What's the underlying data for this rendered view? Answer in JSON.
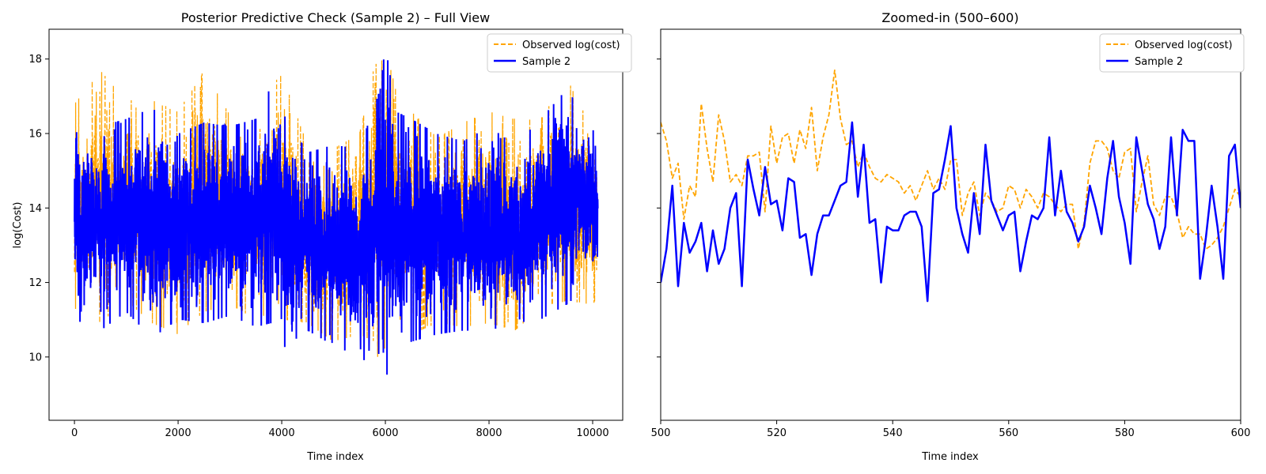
{
  "colors": {
    "observed": "#FFA500",
    "sample": "#0000FF",
    "axes": "#000000",
    "background": "#FFFFFF"
  },
  "chart_data": [
    {
      "type": "line",
      "title": "Posterior Predictive Check (Sample 2) – Full View",
      "xlabel": "Time index",
      "ylabel": "log(Cost)",
      "xlim": [
        -490,
        10580
      ],
      "ylim": [
        8.3,
        18.8
      ],
      "xticks": [
        0,
        2000,
        4000,
        6000,
        8000,
        10000
      ],
      "xtick_labels": [
        "0",
        "2000",
        "4000",
        "6000",
        "8000",
        "10000"
      ],
      "yticks": [
        10,
        12,
        14,
        16,
        18
      ],
      "ytick_labels": [
        "10",
        "12",
        "14",
        "16",
        "18"
      ],
      "grid": false,
      "legend": "top-right",
      "x_range": [
        0,
        10100
      ],
      "series": [
        {
          "name": "Observed log(cost)",
          "style": "dashed",
          "envelope_x": [
            0,
            500,
            1000,
            1500,
            2000,
            2500,
            3000,
            3500,
            3800,
            4000,
            4500,
            5000,
            5500,
            5800,
            5900,
            6000,
            6200,
            6500,
            7000,
            7500,
            8000,
            8500,
            9000,
            9500,
            10000,
            10100
          ],
          "upper": [
            16.8,
            17.7,
            16.9,
            16.9,
            16.6,
            17.7,
            16.5,
            16.2,
            17.3,
            17.6,
            15.7,
            15.6,
            16.0,
            17.9,
            17.8,
            18.3,
            17.2,
            16.6,
            15.9,
            16.3,
            16.6,
            16.4,
            16.4,
            17.5,
            16.1,
            15.6
          ],
          "lower": [
            11.3,
            10.9,
            11.5,
            10.9,
            10.6,
            11.2,
            11.4,
            11.0,
            11.2,
            11.0,
            10.9,
            10.4,
            10.6,
            10.4,
            9.6,
            10.3,
            10.5,
            10.6,
            10.9,
            10.8,
            10.9,
            10.7,
            11.3,
            11.5,
            11.4,
            11.6
          ]
        },
        {
          "name": "Sample 2",
          "style": "solid",
          "envelope_x": [
            0,
            500,
            1000,
            1500,
            2000,
            2500,
            3000,
            3500,
            3800,
            4000,
            4500,
            5000,
            5500,
            5800,
            5900,
            6000,
            6200,
            6500,
            7000,
            7500,
            8000,
            8500,
            9000,
            9500,
            10000,
            10100
          ],
          "upper": [
            16.8,
            16.2,
            16.4,
            16.7,
            16.0,
            16.3,
            16.2,
            16.4,
            17.3,
            16.6,
            15.5,
            15.7,
            15.6,
            16.8,
            17.2,
            18.4,
            16.6,
            16.4,
            16.0,
            15.8,
            16.2,
            15.7,
            16.4,
            17.2,
            16.2,
            15.2
          ],
          "lower": [
            11.0,
            10.7,
            11.2,
            10.5,
            11.0,
            10.9,
            11.1,
            10.8,
            10.9,
            10.2,
            10.7,
            10.3,
            10.0,
            9.6,
            8.9,
            9.4,
            10.1,
            10.4,
            10.6,
            10.7,
            10.7,
            10.9,
            11.0,
            11.4,
            12.0,
            12.3
          ]
        }
      ]
    },
    {
      "type": "line",
      "title": "Zoomed-in (500–600)",
      "xlabel": "Time index",
      "ylabel": "",
      "xlim": [
        500,
        600
      ],
      "ylim": [
        8.3,
        18.8
      ],
      "xticks": [
        500,
        520,
        540,
        560,
        580,
        600
      ],
      "xtick_labels": [
        "500",
        "520",
        "540",
        "560",
        "580",
        "600"
      ],
      "yticks": [
        10,
        12,
        14,
        16,
        18
      ],
      "shared_y": true,
      "grid": false,
      "legend": "top-right",
      "x": [
        500,
        501,
        502,
        503,
        504,
        505,
        506,
        507,
        508,
        509,
        510,
        511,
        512,
        513,
        514,
        515,
        516,
        517,
        518,
        519,
        520,
        521,
        522,
        523,
        524,
        525,
        526,
        527,
        528,
        529,
        530,
        531,
        532,
        533,
        534,
        535,
        536,
        537,
        538,
        539,
        540,
        541,
        542,
        543,
        544,
        545,
        546,
        547,
        548,
        549,
        550,
        551,
        552,
        553,
        554,
        555,
        556,
        557,
        558,
        559,
        560,
        561,
        562,
        563,
        564,
        565,
        566,
        567,
        568,
        569,
        570,
        571,
        572,
        573,
        574,
        575,
        576,
        577,
        578,
        579,
        580,
        581,
        582,
        583,
        584,
        585,
        586,
        587,
        588,
        589,
        590,
        591,
        592,
        593,
        594,
        595,
        596,
        597,
        598,
        599,
        600
      ],
      "series": [
        {
          "name": "Observed log(cost)",
          "style": "dashed",
          "values": [
            16.3,
            15.8,
            14.8,
            15.2,
            13.7,
            14.6,
            14.3,
            16.8,
            15.6,
            14.7,
            16.5,
            15.8,
            14.7,
            14.9,
            14.6,
            15.4,
            15.4,
            15.5,
            13.9,
            16.2,
            15.2,
            15.9,
            16.0,
            15.2,
            16.1,
            15.6,
            16.7,
            15.0,
            15.9,
            16.5,
            17.7,
            16.4,
            15.7,
            15.8,
            15.1,
            15.5,
            15.1,
            14.8,
            14.7,
            14.9,
            14.8,
            14.7,
            14.4,
            14.6,
            14.2,
            14.6,
            15.0,
            14.5,
            14.8,
            14.5,
            15.3,
            15.3,
            13.8,
            14.4,
            14.7,
            13.8,
            14.4,
            14.2,
            13.9,
            14.0,
            14.6,
            14.5,
            14.0,
            14.5,
            14.3,
            14.0,
            14.4,
            14.3,
            14.1,
            13.9,
            14.1,
            14.1,
            12.9,
            13.6,
            15.2,
            15.8,
            15.8,
            15.6,
            15.0,
            14.8,
            15.5,
            15.6,
            13.9,
            14.7,
            15.4,
            14.1,
            13.8,
            14.3,
            14.3,
            13.9,
            13.2,
            13.5,
            13.3,
            13.3,
            12.9,
            13.0,
            13.2,
            13.5,
            14.0,
            14.5,
            14.3
          ],
          "values_note_visible": true
        },
        {
          "name": "Sample 2",
          "style": "solid",
          "values": [
            12.0,
            12.9,
            14.6,
            11.9,
            13.6,
            12.8,
            13.1,
            13.6,
            12.3,
            13.4,
            12.5,
            12.9,
            14.0,
            14.4,
            11.9,
            15.3,
            14.5,
            13.8,
            15.1,
            14.1,
            14.2,
            13.4,
            14.8,
            14.7,
            13.2,
            13.3,
            12.2,
            13.3,
            13.8,
            13.8,
            14.2,
            14.6,
            14.7,
            16.3,
            14.3,
            15.7,
            13.6,
            13.7,
            12.0,
            13.5,
            13.4,
            13.4,
            13.8,
            13.9,
            13.9,
            13.5,
            11.5,
            14.4,
            14.5,
            15.3,
            16.2,
            14.0,
            13.3,
            12.8,
            14.4,
            13.3,
            15.7,
            14.2,
            13.8,
            13.4,
            13.8,
            13.9,
            12.3,
            13.1,
            13.8,
            13.7,
            14.0,
            15.9,
            13.8,
            15.0,
            13.9,
            13.6,
            13.1,
            13.5,
            14.6,
            14.0,
            13.3,
            14.8,
            15.8,
            14.3,
            13.6,
            12.5,
            15.9,
            15.0,
            14.1,
            13.7,
            12.9,
            13.5,
            15.9,
            13.8,
            16.1,
            15.8,
            15.8,
            12.1,
            13.2,
            14.6,
            13.5,
            12.1,
            15.4,
            15.7,
            14.0
          ]
        }
      ]
    }
  ]
}
